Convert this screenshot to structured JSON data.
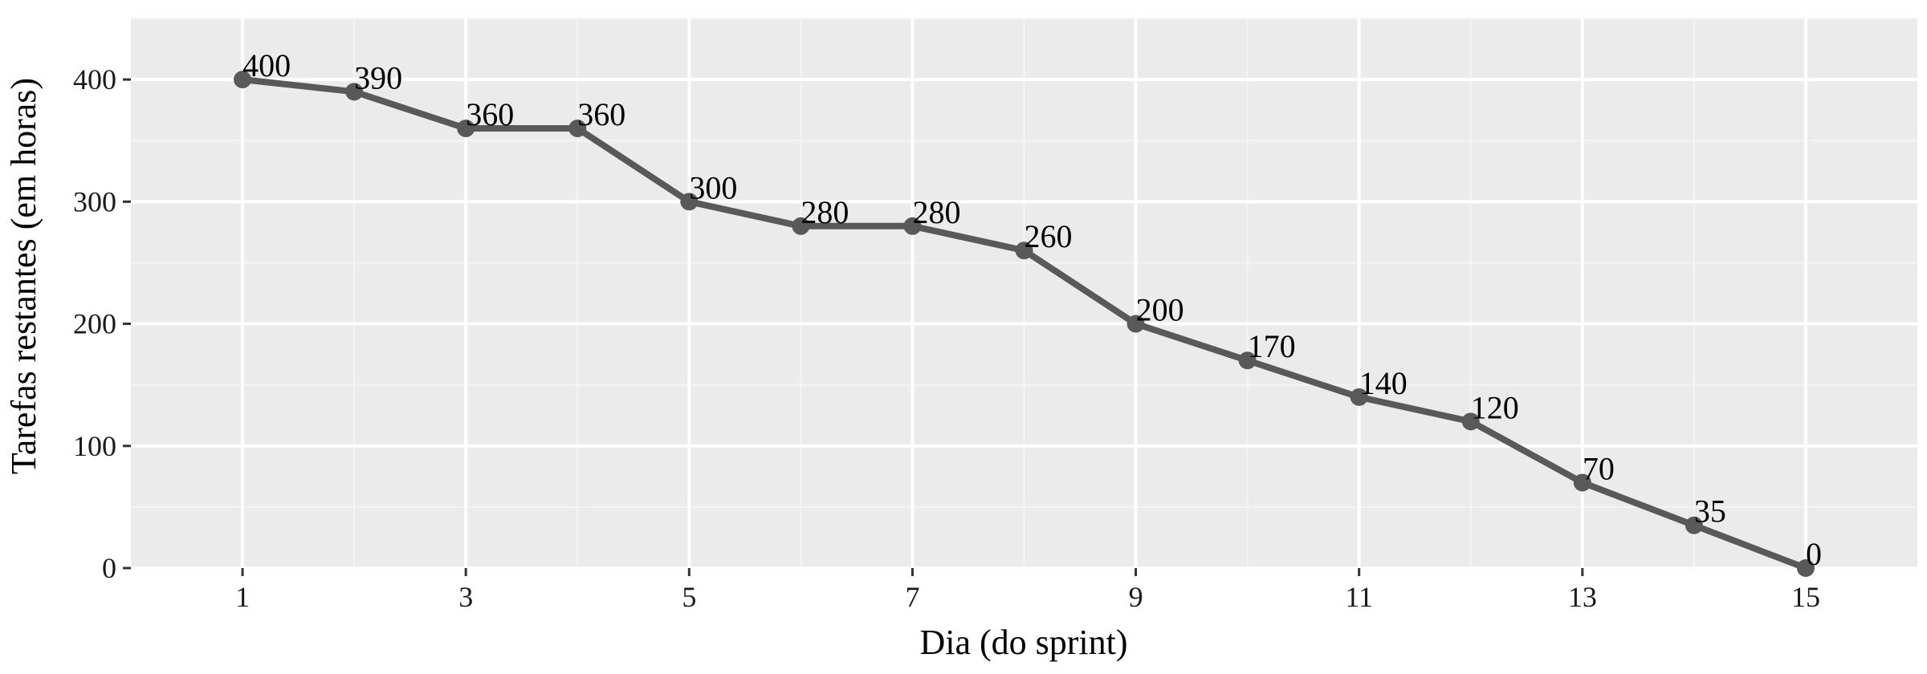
{
  "chart_data": {
    "type": "line",
    "title": "",
    "xlabel": "Dia (do sprint)",
    "ylabel": "Tarefas restantes (em horas)",
    "x": [
      1,
      2,
      3,
      4,
      5,
      6,
      7,
      8,
      9,
      10,
      11,
      12,
      13,
      14,
      15
    ],
    "values": [
      400,
      390,
      360,
      360,
      300,
      280,
      280,
      260,
      200,
      170,
      140,
      120,
      70,
      35,
      0
    ],
    "data_labels": [
      "400",
      "390",
      "360",
      "360",
      "300",
      "280",
      "280",
      "260",
      "200",
      "170",
      "140",
      "120",
      "70",
      "35",
      "0"
    ],
    "xlim": [
      0.0,
      16.0
    ],
    "ylim": [
      0,
      450
    ],
    "x_ticks": [
      1,
      3,
      5,
      7,
      9,
      11,
      13,
      15
    ],
    "x_tick_labels": [
      "1",
      "3",
      "5",
      "7",
      "9",
      "11",
      "13",
      "15"
    ],
    "y_ticks": [
      0,
      100,
      200,
      300,
      400
    ],
    "y_tick_labels": [
      "0",
      "100",
      "200",
      "300",
      "400"
    ],
    "grid": true,
    "legend": "none",
    "colors": {
      "panel_background": "#ebebeb",
      "grid_major": "#ffffff",
      "grid_minor": "#f5f5f5",
      "line": "#595959",
      "point": "#595959",
      "axis_tick": "#333333"
    }
  }
}
